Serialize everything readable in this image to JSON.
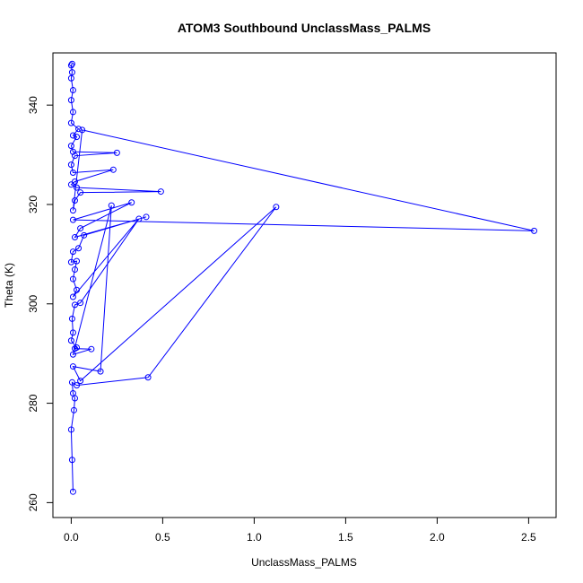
{
  "chart_data": {
    "type": "line",
    "title": "ATOM3 Southbound UnclassMass_PALMS",
    "xlabel": "UnclassMass_PALMS",
    "ylabel": "Theta (K)",
    "xlim": [
      -0.1,
      2.65
    ],
    "ylim": [
      257,
      350.5
    ],
    "xticks": [
      0.0,
      0.5,
      1.0,
      1.5,
      2.0,
      2.5
    ],
    "xtick_labels": [
      "0.0",
      "0.5",
      "1.0",
      "1.5",
      "2.0",
      "2.5"
    ],
    "yticks": [
      260,
      280,
      300,
      320,
      340
    ],
    "ytick_labels": [
      "260",
      "280",
      "300",
      "320",
      "340"
    ],
    "grid": false,
    "series": [
      {
        "color": "#0000ff",
        "points": [
          [
            0.01,
            262.2
          ],
          [
            0.005,
            268.6
          ],
          [
            0.0,
            274.7
          ],
          [
            0.015,
            278.6
          ],
          [
            0.02,
            281.0
          ],
          [
            0.01,
            282.0
          ],
          [
            0.005,
            284.2
          ],
          [
            0.03,
            283.6
          ],
          [
            0.42,
            285.2
          ],
          [
            1.12,
            319.5
          ],
          [
            0.05,
            284.5
          ],
          [
            0.01,
            287.4
          ],
          [
            0.16,
            286.4
          ],
          [
            0.22,
            319.8
          ],
          [
            0.01,
            289.8
          ],
          [
            0.11,
            290.9
          ],
          [
            0.02,
            291.0
          ],
          [
            0.03,
            291.2
          ],
          [
            0.0,
            292.6
          ],
          [
            0.01,
            294.2
          ],
          [
            0.005,
            297.0
          ],
          [
            0.02,
            299.8
          ],
          [
            0.05,
            300.2
          ],
          [
            0.37,
            317.1
          ],
          [
            0.01,
            301.4
          ],
          [
            0.03,
            302.8
          ],
          [
            0.01,
            305.0
          ],
          [
            0.02,
            306.9
          ],
          [
            0.03,
            308.6
          ],
          [
            0.0,
            308.4
          ],
          [
            0.01,
            310.5
          ],
          [
            0.04,
            311.2
          ],
          [
            0.07,
            313.8
          ],
          [
            0.41,
            317.5
          ],
          [
            0.02,
            313.4
          ],
          [
            0.05,
            315.2
          ],
          [
            0.33,
            320.4
          ],
          [
            0.01,
            316.9
          ],
          [
            2.53,
            314.7
          ],
          [
            0.06,
            335.0
          ],
          [
            0.01,
            318.8
          ],
          [
            0.02,
            320.8
          ],
          [
            0.05,
            322.4
          ],
          [
            0.49,
            322.6
          ],
          [
            0.03,
            323.4
          ],
          [
            0.0,
            324.0
          ],
          [
            0.02,
            324.6
          ],
          [
            0.23,
            327.0
          ],
          [
            0.01,
            326.4
          ],
          [
            0.0,
            328.0
          ],
          [
            0.02,
            329.8
          ],
          [
            0.25,
            330.4
          ],
          [
            0.01,
            330.6
          ],
          [
            0.0,
            331.8
          ],
          [
            0.03,
            333.6
          ],
          [
            0.01,
            333.9
          ],
          [
            0.04,
            335.2
          ],
          [
            0.0,
            336.4
          ],
          [
            0.01,
            338.6
          ],
          [
            0.0,
            341.0
          ],
          [
            0.01,
            343.0
          ],
          [
            0.0,
            345.4
          ],
          [
            0.005,
            346.6
          ],
          [
            0.0,
            348.0
          ],
          [
            0.005,
            348.3
          ]
        ]
      }
    ]
  }
}
